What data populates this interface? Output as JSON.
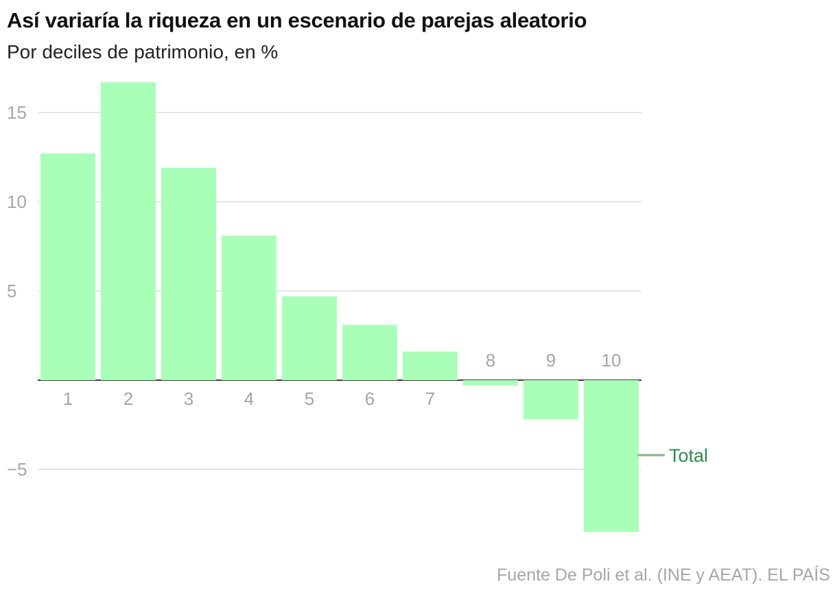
{
  "title": "Así variaría la riqueza en un escenario de parejas aleatorio",
  "subtitle": "Por deciles de patrimonio, en %",
  "source": "Fuente De Poli et al. (INE y AEAT). EL PAÍS",
  "colors": {
    "bar": "#aaffb8",
    "total_line": "#8fbf9a",
    "total_text": "#2e8b4e",
    "grid": "#dddddd",
    "zero_line": "#222222"
  },
  "chart_data": {
    "type": "bar",
    "title": "Así variaría la riqueza en un escenario de parejas aleatorio",
    "subtitle": "Por deciles de patrimonio, en %",
    "xlabel": "",
    "ylabel": "",
    "categories": [
      "1",
      "2",
      "3",
      "4",
      "5",
      "6",
      "7",
      "8",
      "9",
      "10"
    ],
    "values": [
      12.7,
      16.7,
      11.9,
      8.1,
      4.7,
      3.1,
      1.6,
      -0.3,
      -2.2,
      -8.5
    ],
    "ylim": [
      -9,
      17
    ],
    "yticks": [
      -5,
      5,
      10,
      15
    ],
    "ytick_labels": [
      "−5",
      "5",
      "10",
      "15"
    ],
    "grid": true,
    "reference_line": {
      "label": "Total",
      "value": -4.2
    }
  }
}
